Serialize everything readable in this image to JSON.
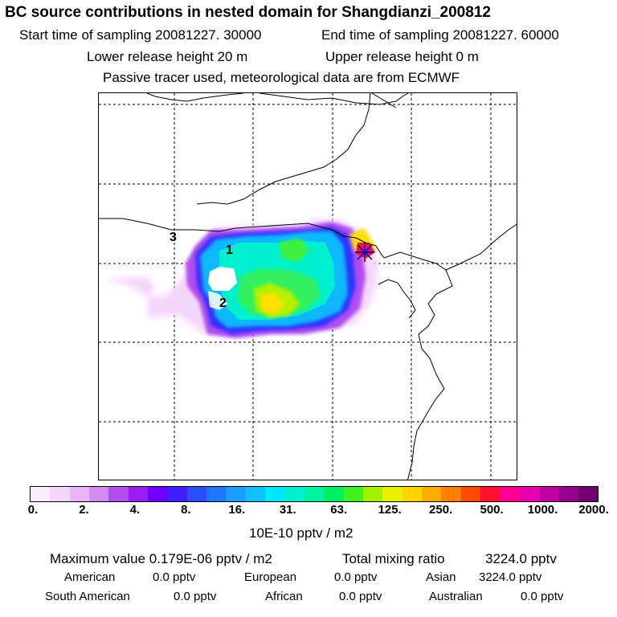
{
  "header": {
    "title": "BC  source contributions in nested domain for Shangdianzi_200812",
    "start_label": "Start time of sampling 20081227. 30000",
    "end_label": "End time of sampling 20081227. 60000",
    "lower_label": "Lower release height   20 m",
    "upper_label": "Upper release height    0 m",
    "tracer_label": "Passive tracer used, meteorological data are from ECMWF"
  },
  "map": {
    "markers": [
      "1",
      "2",
      "3"
    ],
    "station_marker": "station-star",
    "colors": {
      "low": "#f3d4fa",
      "purple": "#8a00ff",
      "blue": "#2040ff",
      "cyan": "#00e8ff",
      "green": "#00ff80",
      "yellow": "#ffe000",
      "red": "#ff1040",
      "magenta": "#d000a0"
    }
  },
  "colorbar": {
    "colors": [
      "#fbeefd",
      "#f4d6fb",
      "#eab6f8",
      "#d08af2",
      "#b04ef0",
      "#9b1cf2",
      "#6f00ff",
      "#4020ff",
      "#2b4dff",
      "#1d78ff",
      "#1e9cff",
      "#12c0ff",
      "#00e8ff",
      "#00f0d0",
      "#00f2a0",
      "#00ee60",
      "#40f020",
      "#a0f000",
      "#e8f000",
      "#ffd400",
      "#ffaa00",
      "#ff7e00",
      "#ff4a00",
      "#ff1030",
      "#ff0090",
      "#e800b0",
      "#c000a0",
      "#980090",
      "#700070"
    ],
    "ticks": [
      "0.",
      "2.",
      "4.",
      "8.",
      "16.",
      "31.",
      "63.",
      "125.",
      "250.",
      "500.",
      "1000.",
      "2000."
    ],
    "units": "10E-10 pptv / m2"
  },
  "footer": {
    "max_label": "Maximum value  0.179E-06 pptv / m2",
    "total_label": "Total mixing ratio",
    "total_value": "3224.0 pptv",
    "american_label": "American",
    "american_value": "0.0 pptv",
    "european_label": "European",
    "european_value": "0.0 pptv",
    "asian_label": "Asian",
    "asian_value": "3224.0 pptv",
    "south_american_label": "South American",
    "south_american_value": "0.0 pptv",
    "african_label": "African",
    "african_value": "0.0 pptv",
    "australian_label": "Australian",
    "australian_value": "0.0 pptv"
  }
}
